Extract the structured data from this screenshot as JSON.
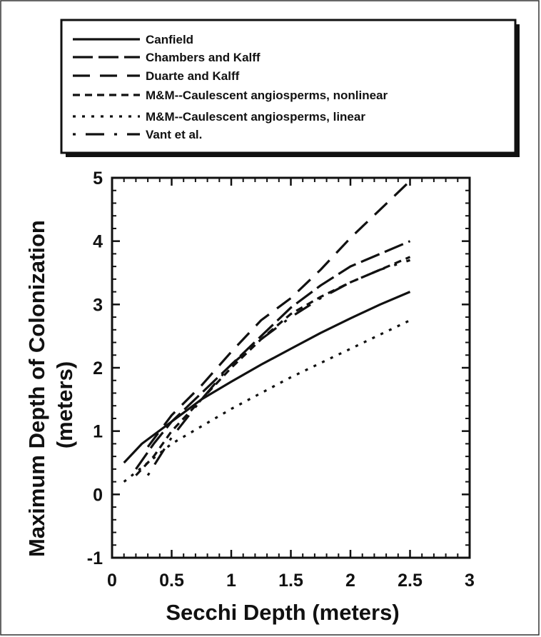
{
  "chart_data": {
    "type": "line",
    "title": "",
    "xlabel": "Secchi Depth (meters)",
    "ylabel_lines": [
      "Maximum Depth of Colonization",
      "(meters)"
    ],
    "xlim": [
      0,
      3
    ],
    "ylim": [
      -1,
      5
    ],
    "x_ticks": [
      0,
      0.5,
      1,
      1.5,
      2,
      2.5,
      3
    ],
    "x_tick_labels": [
      "0",
      "0.5",
      "1",
      "1.5",
      "2",
      "2.5",
      "3"
    ],
    "y_ticks": [
      -1,
      0,
      1,
      2,
      3,
      4,
      5
    ],
    "y_tick_labels": [
      "-1",
      "0",
      "1",
      "2",
      "3",
      "4",
      "5"
    ],
    "grid": false,
    "legend_position": "top",
    "series": [
      {
        "name": "Canfield",
        "style": "solid",
        "x": [
          0.1,
          0.25,
          0.5,
          0.75,
          1.0,
          1.25,
          1.5,
          1.75,
          2.0,
          2.25,
          2.5
        ],
        "y": [
          0.5,
          0.8,
          1.15,
          1.5,
          1.78,
          2.05,
          2.3,
          2.55,
          2.78,
          3.0,
          3.2
        ]
      },
      {
        "name": "Chambers and Kalff",
        "style": "longdash",
        "x": [
          0.2,
          0.35,
          0.5,
          0.75,
          1.0,
          1.25,
          1.5,
          1.75,
          2.0,
          2.25,
          2.5
        ],
        "y": [
          0.4,
          0.8,
          1.15,
          1.6,
          2.05,
          2.5,
          2.95,
          3.3,
          3.6,
          3.8,
          4.0
        ]
      },
      {
        "name": "Duarte and Kalff",
        "style": "dash",
        "x": [
          0.3,
          0.5,
          0.75,
          1.0,
          1.25,
          1.5,
          1.75,
          2.0,
          2.25,
          2.5
        ],
        "y": [
          0.75,
          1.25,
          1.72,
          2.25,
          2.75,
          3.1,
          3.55,
          4.05,
          4.5,
          4.95
        ]
      },
      {
        "name": "M&M--Caulescent angiosperms, nonlinear",
        "style": "shortdash",
        "x": [
          0.2,
          0.35,
          0.5,
          0.75,
          1.0,
          1.25,
          1.5,
          1.75,
          2.0,
          2.25,
          2.5
        ],
        "y": [
          0.3,
          0.6,
          1.0,
          1.5,
          2.0,
          2.45,
          2.85,
          3.12,
          3.35,
          3.55,
          3.75
        ]
      },
      {
        "name": "M&M--Caulescent angiosperms, linear",
        "style": "dot",
        "x": [
          0.1,
          0.5,
          1.0,
          1.5,
          2.0,
          2.5
        ],
        "y": [
          0.2,
          0.8,
          1.35,
          1.85,
          2.3,
          2.75
        ]
      },
      {
        "name": "Vant et al.",
        "style": "dotdash",
        "x": [
          0.3,
          0.5,
          0.75,
          1.0,
          1.25,
          1.5,
          1.75,
          2.0,
          2.25,
          2.5
        ],
        "y": [
          0.3,
          0.9,
          1.5,
          2.05,
          2.45,
          2.8,
          3.1,
          3.35,
          3.55,
          3.7
        ]
      }
    ]
  }
}
